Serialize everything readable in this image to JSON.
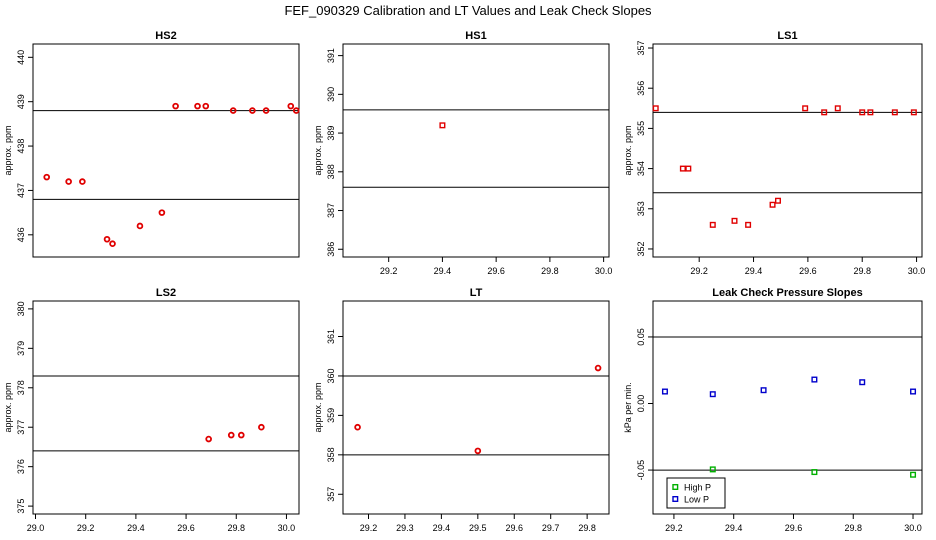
{
  "page_title": "FEF_090329  Calibration and LT Values and Leak Check Slopes",
  "chart_data": [
    {
      "type": "scatter",
      "title": "HS2",
      "ylabel": "approx. ppm",
      "xlim": [
        29.03,
        30.0
      ],
      "ylim": [
        435.5,
        440.3
      ],
      "xticks": [],
      "yticks": [
        436,
        437,
        438,
        439,
        440
      ],
      "hlines": [
        438.8,
        436.8
      ],
      "series": [
        {
          "color": "#e00000",
          "marker": "circle",
          "points": [
            [
              29.08,
              437.3
            ],
            [
              29.16,
              437.2
            ],
            [
              29.21,
              437.2
            ],
            [
              29.3,
              435.9
            ],
            [
              29.32,
              435.8
            ],
            [
              29.42,
              436.2
            ],
            [
              29.5,
              436.5
            ],
            [
              29.55,
              438.9
            ],
            [
              29.63,
              438.9
            ],
            [
              29.66,
              438.9
            ],
            [
              29.76,
              438.8
            ],
            [
              29.83,
              438.8
            ],
            [
              29.88,
              438.8
            ],
            [
              29.97,
              438.9
            ],
            [
              29.99,
              438.8
            ]
          ]
        }
      ]
    },
    {
      "type": "scatter",
      "title": "HS1",
      "ylabel": "approx. ppm",
      "xlim": [
        29.03,
        30.02
      ],
      "ylim": [
        385.8,
        391.3
      ],
      "xticks": [
        29.2,
        29.4,
        29.6,
        29.8,
        30.0
      ],
      "xtick_labels": [
        "29.2",
        "29.4",
        "29.6",
        "29.8",
        "30.0"
      ],
      "yticks": [
        386,
        387,
        388,
        389,
        390,
        391
      ],
      "hlines": [
        389.6,
        387.6
      ],
      "series": [
        {
          "color": "#e00000",
          "marker": "square",
          "points": [
            [
              29.4,
              389.2
            ]
          ]
        }
      ]
    },
    {
      "type": "scatter",
      "title": "LS1",
      "ylabel": "approx. ppm",
      "xlim": [
        29.03,
        30.02
      ],
      "ylim": [
        351.8,
        357.1
      ],
      "xticks": [
        29.2,
        29.4,
        29.6,
        29.8,
        30.0
      ],
      "xtick_labels": [
        "29.2",
        "29.4",
        "29.6",
        "29.8",
        "30.0"
      ],
      "yticks": [
        352,
        353,
        354,
        355,
        356,
        357
      ],
      "hlines": [
        355.4,
        353.4
      ],
      "series": [
        {
          "color": "#e00000",
          "marker": "square",
          "points": [
            [
              29.04,
              355.5
            ],
            [
              29.14,
              354.0
            ],
            [
              29.16,
              354.0
            ],
            [
              29.25,
              352.6
            ],
            [
              29.33,
              352.7
            ],
            [
              29.38,
              352.6
            ],
            [
              29.47,
              353.1
            ],
            [
              29.49,
              353.2
            ],
            [
              29.59,
              355.5
            ],
            [
              29.66,
              355.4
            ],
            [
              29.71,
              355.5
            ],
            [
              29.8,
              355.4
            ],
            [
              29.83,
              355.4
            ],
            [
              29.92,
              355.4
            ],
            [
              29.99,
              355.4
            ]
          ]
        }
      ]
    },
    {
      "type": "scatter",
      "title": "LS2",
      "ylabel": "approx. ppm",
      "xlim": [
        28.99,
        30.05
      ],
      "ylim": [
        374.8,
        380.2
      ],
      "xticks": [
        29.0,
        29.2,
        29.4,
        29.6,
        29.8,
        30.0
      ],
      "xtick_labels": [
        "29.0",
        "29.2",
        "29.4",
        "29.6",
        "29.8",
        "30.0"
      ],
      "yticks": [
        375,
        376,
        377,
        378,
        379,
        380
      ],
      "hlines": [
        378.3,
        376.4
      ],
      "series": [
        {
          "color": "#e00000",
          "marker": "circle",
          "points": [
            [
              29.69,
              376.7
            ],
            [
              29.78,
              376.8
            ],
            [
              29.82,
              376.8
            ],
            [
              29.9,
              377.0
            ]
          ]
        }
      ]
    },
    {
      "type": "scatter",
      "title": "LT",
      "ylabel": "approx. ppm",
      "xlim": [
        29.13,
        29.86
      ],
      "ylim": [
        356.5,
        361.9
      ],
      "xticks": [
        29.2,
        29.3,
        29.4,
        29.5,
        29.6,
        29.7,
        29.8
      ],
      "xtick_labels": [
        "29.2",
        "29.3",
        "29.4",
        "29.5",
        "29.6",
        "29.7",
        "29.8"
      ],
      "yticks": [
        357,
        358,
        359,
        360,
        361
      ],
      "hlines": [
        360.0,
        358.0
      ],
      "series": [
        {
          "color": "#e00000",
          "marker": "circle",
          "points": [
            [
              29.17,
              358.7
            ],
            [
              29.5,
              358.1
            ],
            [
              29.83,
              360.2
            ]
          ]
        }
      ]
    },
    {
      "type": "scatter",
      "title": "Leak Check Pressure Slopes",
      "ylabel": "kPa per min.",
      "xlim": [
        29.13,
        30.03
      ],
      "ylim": [
        -0.083,
        0.077
      ],
      "xticks": [
        29.2,
        29.4,
        29.6,
        29.8,
        30.0
      ],
      "xtick_labels": [
        "29.2",
        "29.4",
        "29.6",
        "29.8",
        "30.0"
      ],
      "yticks": [
        -0.05,
        0.0,
        0.05
      ],
      "ytick_labels": [
        "-0.05",
        "0.00",
        "0.05"
      ],
      "hlines": [
        0.05,
        -0.05
      ],
      "legend": {
        "position": "bottom-left"
      },
      "series": [
        {
          "name": "High P",
          "color": "#00b000",
          "marker": "square",
          "points": [
            [
              29.33,
              -0.0495
            ],
            [
              29.67,
              -0.0515
            ],
            [
              30.0,
              -0.0535
            ]
          ]
        },
        {
          "name": "Low P",
          "color": "#0000cc",
          "marker": "square",
          "points": [
            [
              29.17,
              0.009
            ],
            [
              29.33,
              0.007
            ],
            [
              29.5,
              0.01
            ],
            [
              29.67,
              0.018
            ],
            [
              29.83,
              0.016
            ],
            [
              30.0,
              0.009
            ]
          ]
        }
      ]
    }
  ]
}
